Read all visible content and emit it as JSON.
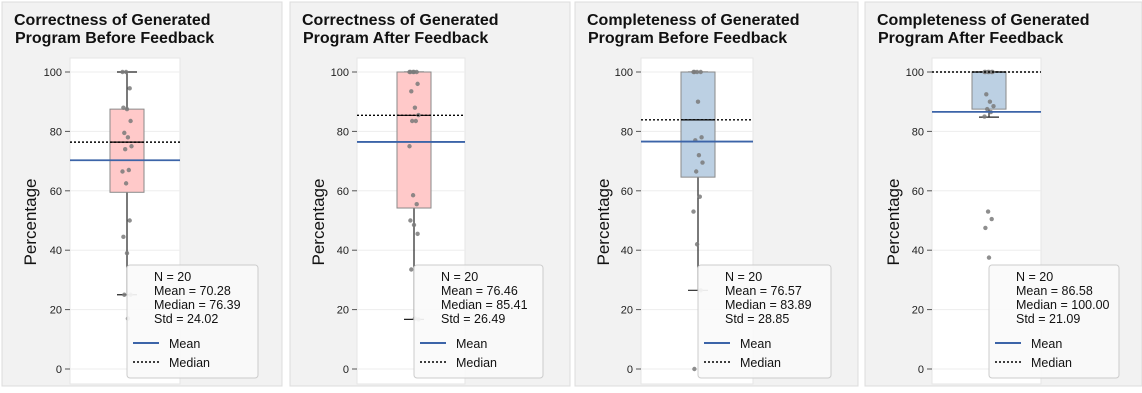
{
  "chart_data": [
    {
      "type": "box",
      "title": "Correctness of Generated\nProgram Before Feedback",
      "ylabel": "Percentage",
      "ylim": [
        -2,
        104
      ],
      "yticks": [
        0,
        20,
        40,
        60,
        80,
        100
      ],
      "box": {
        "q1": 59.5,
        "median": 76.39,
        "q3": 87.5,
        "whisker_low": 25,
        "whisker_high": 100
      },
      "color": "#ffc9c9",
      "points": [
        100,
        100,
        94.5,
        88,
        87.5,
        83.5,
        79.5,
        78,
        75,
        74,
        67,
        66.5,
        62.5,
        50,
        44.5,
        39,
        25,
        25,
        17
      ],
      "mean": 70.28,
      "median_line": 76.39,
      "stats": [
        "N = 20",
        "Mean = 70.28",
        "Median = 76.39",
        "Std = 24.02"
      ],
      "legend": [
        "Mean",
        "Median"
      ]
    },
    {
      "type": "box",
      "title": "Correctness of Generated\nProgram After Feedback",
      "ylabel": "Percentage",
      "ylim": [
        -2,
        104
      ],
      "yticks": [
        0,
        20,
        40,
        60,
        80,
        100
      ],
      "box": {
        "q1": 54.2,
        "median": 85.41,
        "q3": 100,
        "whisker_low": 16.7,
        "whisker_high": 100
      },
      "color": "#ffc9c9",
      "points": [
        100,
        100,
        100,
        100,
        100,
        96,
        93.5,
        88,
        85.5,
        83.5,
        83.5,
        75,
        58.5,
        55.5,
        50,
        48.5,
        45.5,
        33.5,
        17,
        16.7
      ],
      "mean": 76.46,
      "median_line": 85.41,
      "stats": [
        "N = 20",
        "Mean = 76.46",
        "Median = 85.41",
        "Std = 26.49"
      ],
      "legend": [
        "Mean",
        "Median"
      ]
    },
    {
      "type": "box",
      "title": "Completeness of Generated\nProgram Before Feedback",
      "ylabel": "Percentage",
      "ylim": [
        -2,
        104
      ],
      "yticks": [
        0,
        20,
        40,
        60,
        80,
        100
      ],
      "box": {
        "q1": 64.6,
        "median": 83.89,
        "q3": 100,
        "whisker_low": 26.5,
        "whisker_high": 100
      },
      "color": "#bcd0e3",
      "points": [
        100,
        100,
        100,
        100,
        90,
        78,
        77,
        72,
        69.5,
        66.5,
        58,
        53,
        42,
        26.5,
        0
      ],
      "mean": 76.57,
      "median_line": 83.89,
      "stats": [
        "N = 20",
        "Mean = 76.57",
        "Median = 83.89",
        "Std = 28.85"
      ],
      "legend": [
        "Mean",
        "Median"
      ]
    },
    {
      "type": "box",
      "title": "Completeness of Generated\nProgram After Feedback",
      "ylabel": "Percentage",
      "ylim": [
        -2,
        104
      ],
      "yticks": [
        0,
        20,
        40,
        60,
        80,
        100
      ],
      "box": {
        "q1": 87.5,
        "median": 100,
        "q3": 100,
        "whisker_low": 84.8,
        "whisker_high": 100
      },
      "color": "#bcd0e3",
      "points": [
        100,
        100,
        100,
        100,
        100,
        100,
        92.5,
        90,
        88.5,
        87.5,
        86.5,
        85,
        53,
        50.5,
        47.5,
        37.5
      ],
      "mean": 86.58,
      "median_line": 100,
      "stats": [
        "N = 20",
        "Mean = 86.58",
        "Median = 100.00",
        "Std = 21.09"
      ],
      "legend": [
        "Mean",
        "Median"
      ]
    }
  ],
  "colors": {
    "mean_line": "#3c64a8",
    "median_line": "#000000",
    "box_edge": "#8a8a8a",
    "points": "#7a7a7a",
    "panel_bg": "#f2f2f2",
    "plot_bg": "#ffffff"
  }
}
